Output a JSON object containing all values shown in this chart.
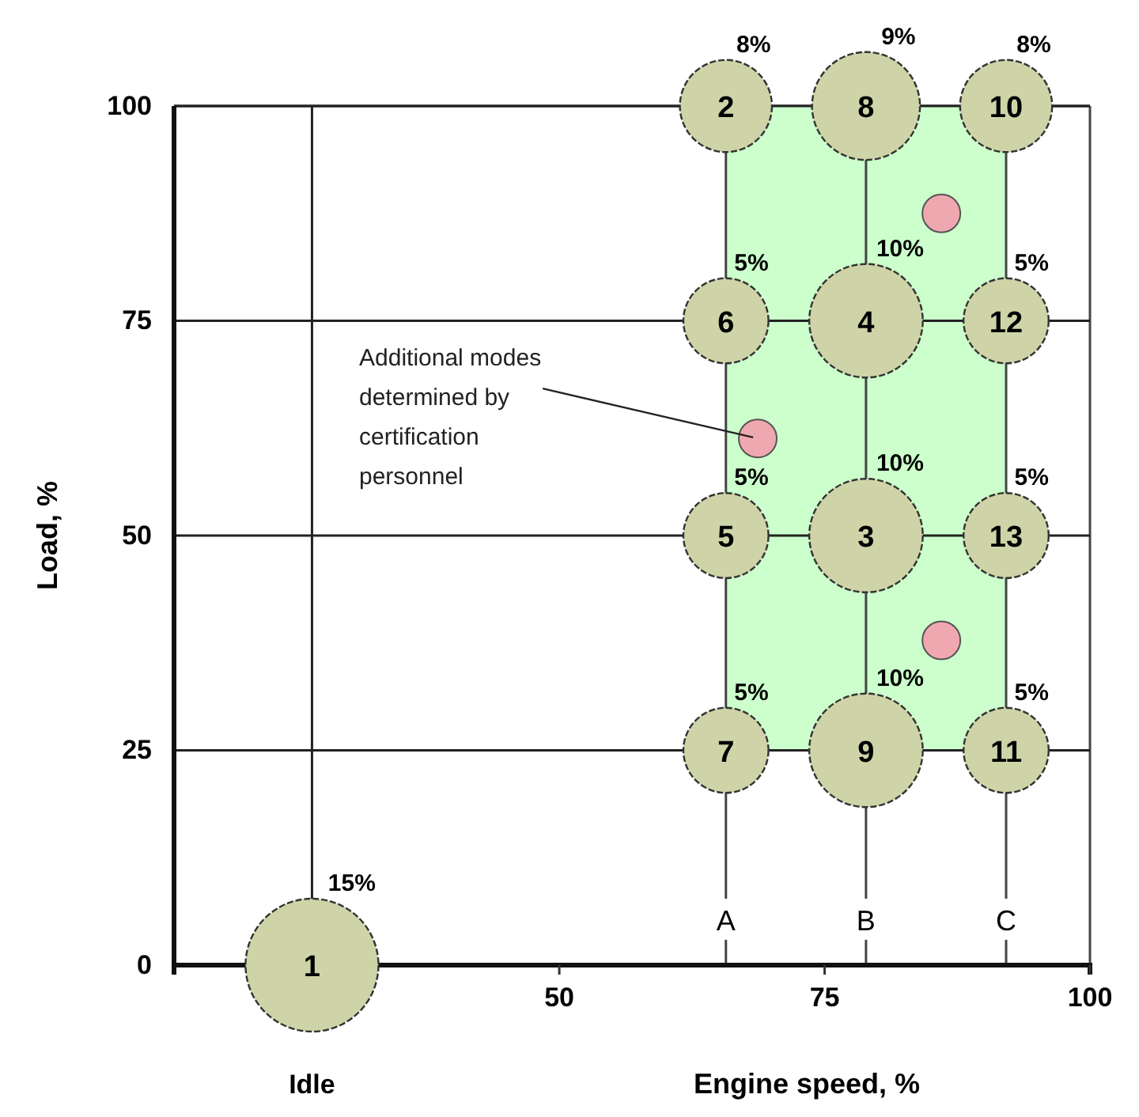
{
  "chart_data": {
    "type": "bubble",
    "xlabel": "Engine speed, %",
    "ylabel": "Load, %",
    "xlim": [
      13.7,
      100
    ],
    "xticks": [
      50,
      75,
      100
    ],
    "ylim": [
      0,
      100
    ],
    "yticks": [
      0,
      25,
      50,
      75,
      100
    ],
    "grid": "y",
    "ref_lines": [
      {
        "axis": "x",
        "value": 26.7,
        "label": null,
        "color": "#222222"
      },
      {
        "axis": "x",
        "value": 65.7,
        "label": "A",
        "color": "#444444"
      },
      {
        "axis": "x",
        "value": 78.9,
        "label": "B",
        "color": "#444444"
      },
      {
        "axis": "x",
        "value": 92.1,
        "label": "C",
        "color": "#444444"
      }
    ],
    "series": [
      {
        "type": "bubble",
        "color": "#cfd4a8",
        "x": [
          26.7,
          65.7,
          78.9,
          78.9,
          65.7,
          65.7,
          65.7,
          78.9,
          78.9,
          92.1,
          92.1,
          92.1,
          92.1
        ],
        "values": [
          0,
          100,
          50,
          75,
          50,
          75,
          25,
          100,
          25,
          100,
          25,
          75,
          50
        ],
        "sizes": [
          1,
          0.48,
          0.73,
          0.73,
          0.41,
          0.41,
          0.41,
          0.66,
          0.73,
          0.48,
          0.41,
          0.41,
          0.41
        ]
      },
      {
        "type": "scatter",
        "color": "#f0a8b0",
        "x": [
          68.7,
          86.0,
          86.0
        ],
        "values": [
          61.3,
          87.5,
          37.8
        ]
      }
    ],
    "annotations": [
      {
        "text": "1",
        "x": 26.7,
        "y": 0
      },
      {
        "text": "2",
        "x": 65.7,
        "y": 100
      },
      {
        "text": "3",
        "x": 78.9,
        "y": 50
      },
      {
        "text": "4",
        "x": 78.9,
        "y": 75
      },
      {
        "text": "5",
        "x": 65.7,
        "y": 50
      },
      {
        "text": "6",
        "x": 65.7,
        "y": 75
      },
      {
        "text": "7",
        "x": 65.7,
        "y": 25
      },
      {
        "text": "8",
        "x": 78.9,
        "y": 100
      },
      {
        "text": "9",
        "x": 78.9,
        "y": 25
      },
      {
        "text": "10",
        "x": 92.1,
        "y": 100
      },
      {
        "text": "11",
        "x": 92.1,
        "y": 25
      },
      {
        "text": "12",
        "x": 92.1,
        "y": 75
      },
      {
        "text": "13",
        "x": 92.1,
        "y": 50
      },
      {
        "text": "15%",
        "x": 26.7,
        "y": 0
      },
      {
        "text": "8%",
        "x": 65.7,
        "y": 100
      },
      {
        "text": "10%",
        "x": 78.9,
        "y": 50
      },
      {
        "text": "10%",
        "x": 78.9,
        "y": 75
      },
      {
        "text": "5%",
        "x": 65.7,
        "y": 50
      },
      {
        "text": "5%",
        "x": 65.7,
        "y": 75
      },
      {
        "text": "5%",
        "x": 65.7,
        "y": 25
      },
      {
        "text": "9%",
        "x": 78.9,
        "y": 100
      },
      {
        "text": "10%",
        "x": 78.9,
        "y": 25
      },
      {
        "text": "8%",
        "x": 92.1,
        "y": 100
      },
      {
        "text": "5%",
        "x": 92.1,
        "y": 25
      },
      {
        "text": "5%",
        "x": 92.1,
        "y": 75
      },
      {
        "text": "5%",
        "x": 92.1,
        "y": 50
      },
      {
        "text": "Additional modes determined by certification personnel",
        "x": 68.7,
        "y": 61.3
      },
      "Idle"
    ]
  }
}
